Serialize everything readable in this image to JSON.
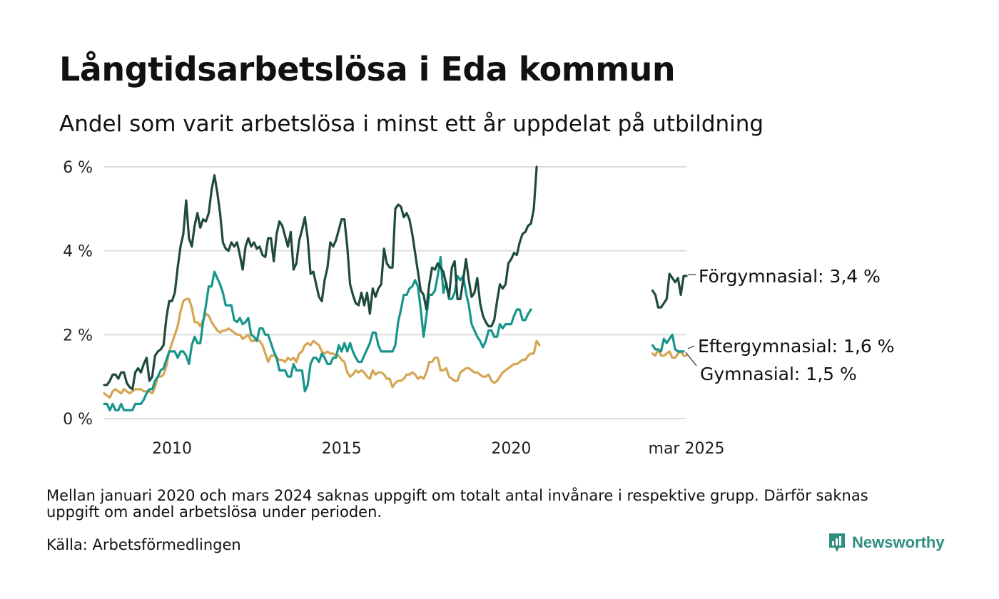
{
  "title": "Långtidsarbetslösa i Eda kommun",
  "subtitle": "Andel som varit arbetslösa i minst ett år uppdelat på utbildning",
  "note": "Mellan januari 2020 och mars 2024 saknas uppgift om totalt antal invånare i respektive grupp. Därför saknas uppgift om andel arbetslösa under perioden.",
  "source": "Källa: Arbetsförmedlingen",
  "brand": {
    "name": "Newsworthy",
    "icon": "newsworthy-logo-icon"
  },
  "colors": {
    "forgymnasial": "#1f4a3f",
    "eftergymnasial": "#16968a",
    "gymnasial": "#d4a552",
    "grid": "#dddddd"
  },
  "chart_data": {
    "type": "line",
    "title": "Långtidsarbetslösa i Eda kommun",
    "subtitle": "Andel som varit arbetslösa i minst ett år uppdelat på utbildning",
    "x_type": "date",
    "x_ticks": [
      "2010",
      "2015",
      "2020",
      "mar 2025"
    ],
    "y_ticks": [
      "0 %",
      "2 %",
      "4 %",
      "6 %"
    ],
    "y_tick_values": [
      0,
      2,
      4,
      6
    ],
    "ylim": [
      0,
      6
    ],
    "xlim": [
      "2008-01",
      "2025-03"
    ],
    "grid": "horizontal",
    "legend": "direct labels at line ends",
    "series": [
      {
        "name": "Förgymnasial",
        "end_label": "Förgymnasial: 3,4 %",
        "segments": [
          {
            "start": "2008-01",
            "values": [
              0.8,
              0.8,
              0.9,
              1.05,
              1.05,
              0.95,
              1.1,
              1.1,
              0.85,
              0.75,
              0.7,
              1.1,
              1.2,
              1.1,
              1.3,
              1.45,
              0.9,
              1.0,
              1.5,
              1.6,
              1.65,
              1.75,
              2.4,
              2.8,
              2.8,
              3.0,
              3.6,
              4.1,
              4.4,
              5.2,
              4.3,
              4.1,
              4.6,
              4.9,
              4.55,
              4.75,
              4.7,
              4.9,
              5.45,
              5.8,
              5.4,
              4.9,
              4.2,
              4.05,
              4.0,
              4.2,
              4.1,
              4.2,
              3.9,
              3.55,
              4.1,
              4.3,
              4.1,
              4.2,
              4.05,
              4.1,
              3.9,
              3.85,
              4.3,
              4.3,
              3.75,
              4.4,
              4.7,
              4.6,
              4.35,
              4.1,
              4.45,
              3.55,
              3.7,
              4.25,
              4.5,
              4.8,
              4.3,
              3.45,
              3.5,
              3.2,
              2.9,
              2.8,
              3.3,
              3.6,
              4.2,
              4.1,
              4.25,
              4.5,
              4.75,
              4.75,
              4.1,
              3.2,
              2.95,
              2.75,
              2.7,
              3.0,
              2.7,
              3.0,
              2.5,
              3.1,
              2.9,
              3.1,
              3.2,
              4.05,
              3.7,
              3.6,
              3.6,
              5.0,
              5.1,
              5.05,
              4.8,
              4.9,
              4.75,
              4.4,
              3.95,
              3.5,
              3.05,
              2.95,
              2.6,
              3.2,
              3.6,
              3.55,
              3.7,
              3.6,
              3.5,
              3.2,
              2.9,
              3.6,
              3.75,
              2.85,
              2.85,
              3.3,
              3.8,
              3.3,
              2.9,
              3.0,
              3.35,
              2.75,
              2.45,
              2.3,
              2.2,
              2.2,
              2.35,
              2.8,
              3.2,
              3.1,
              3.2,
              3.7,
              3.8,
              3.95,
              3.9,
              4.2,
              4.4,
              4.45,
              4.6,
              4.65,
              5.0,
              6.0
            ]
          },
          {
            "start": "2024-03",
            "values": [
              3.05,
              2.95,
              2.65,
              2.65,
              2.75,
              2.85,
              3.45,
              3.35,
              3.25,
              3.35,
              2.95,
              3.4,
              3.4
            ]
          }
        ]
      },
      {
        "name": "Eftergymnasial",
        "end_label": "Eftergymnasial: 1,6 %",
        "segments": [
          {
            "start": "2008-01",
            "values": [
              0.35,
              0.35,
              0.2,
              0.35,
              0.2,
              0.2,
              0.35,
              0.2,
              0.2,
              0.2,
              0.2,
              0.35,
              0.35,
              0.35,
              0.45,
              0.6,
              0.7,
              0.7,
              0.9,
              1.0,
              1.15,
              1.2,
              1.4,
              1.6,
              1.6,
              1.6,
              1.45,
              1.6,
              1.6,
              1.5,
              1.3,
              1.75,
              1.95,
              1.8,
              1.8,
              2.3,
              2.7,
              3.15,
              3.15,
              3.5,
              3.35,
              3.2,
              3.0,
              2.7,
              2.7,
              2.7,
              2.35,
              2.3,
              2.4,
              2.25,
              2.3,
              2.4,
              2.0,
              1.95,
              1.85,
              2.15,
              2.15,
              2.0,
              2.0,
              1.8,
              1.6,
              1.45,
              1.15,
              1.15,
              1.15,
              1.0,
              1.0,
              1.3,
              1.15,
              1.15,
              1.15,
              0.65,
              0.8,
              1.3,
              1.45,
              1.45,
              1.35,
              1.55,
              1.45,
              1.3,
              1.3,
              1.45,
              1.45,
              1.75,
              1.6,
              1.8,
              1.6,
              1.8,
              1.6,
              1.45,
              1.35,
              1.35,
              1.5,
              1.65,
              1.8,
              2.05,
              2.05,
              1.75,
              1.6,
              1.6,
              1.6,
              1.6,
              1.6,
              1.75,
              2.3,
              2.6,
              2.95,
              2.95,
              3.1,
              3.15,
              3.3,
              3.15,
              2.6,
              1.95,
              2.45,
              2.95,
              2.95,
              3.05,
              3.4,
              3.85,
              3.0,
              3.25,
              2.85,
              2.85,
              3.0,
              3.4,
              3.3,
              3.4,
              3.0,
              2.7,
              2.25,
              2.1,
              1.95,
              1.85,
              1.7,
              1.85,
              2.1,
              2.1,
              1.95,
              1.95,
              2.25,
              2.15,
              2.25,
              2.25,
              2.25,
              2.45,
              2.6,
              2.6,
              2.35,
              2.35,
              2.5,
              2.6
            ]
          },
          {
            "start": "2024-03",
            "values": [
              1.75,
              1.65,
              1.65,
              1.6,
              1.9,
              1.8,
              1.9,
              2.0,
              1.65,
              1.6,
              1.6,
              1.6
            ]
          }
        ]
      },
      {
        "name": "Gymnasial",
        "end_label": "Gymnasial: 1,5 %",
        "segments": [
          {
            "start": "2008-01",
            "values": [
              0.6,
              0.55,
              0.5,
              0.65,
              0.7,
              0.65,
              0.6,
              0.7,
              0.65,
              0.6,
              0.65,
              0.7,
              0.7,
              0.7,
              0.65,
              0.65,
              0.65,
              0.6,
              0.75,
              1.0,
              1.0,
              1.05,
              1.25,
              1.6,
              1.8,
              2.0,
              2.2,
              2.55,
              2.8,
              2.85,
              2.85,
              2.65,
              2.3,
              2.3,
              2.2,
              2.35,
              2.5,
              2.45,
              2.3,
              2.2,
              2.1,
              2.05,
              2.1,
              2.1,
              2.15,
              2.1,
              2.05,
              2.0,
              2.0,
              1.9,
              1.95,
              2.0,
              1.85,
              1.85,
              1.9,
              1.85,
              1.75,
              1.55,
              1.35,
              1.5,
              1.5,
              1.45,
              1.4,
              1.4,
              1.35,
              1.45,
              1.4,
              1.45,
              1.35,
              1.55,
              1.6,
              1.75,
              1.8,
              1.75,
              1.85,
              1.8,
              1.75,
              1.6,
              1.55,
              1.6,
              1.55,
              1.55,
              1.5,
              1.5,
              1.4,
              1.35,
              1.1,
              1.0,
              1.05,
              1.15,
              1.1,
              1.15,
              1.1,
              1.0,
              0.95,
              1.15,
              1.05,
              1.1,
              1.1,
              1.05,
              0.95,
              0.95,
              0.75,
              0.85,
              0.9,
              0.9,
              0.95,
              1.05,
              1.05,
              1.1,
              1.05,
              0.95,
              1.0,
              0.95,
              1.1,
              1.35,
              1.35,
              1.45,
              1.45,
              1.15,
              1.15,
              1.2,
              1.0,
              0.95,
              0.9,
              0.9,
              1.1,
              1.15,
              1.2,
              1.2,
              1.15,
              1.1,
              1.1,
              1.05,
              1.0,
              1.0,
              1.05,
              0.9,
              0.85,
              0.9,
              1.0,
              1.1,
              1.15,
              1.2,
              1.25,
              1.3,
              1.3,
              1.35,
              1.4,
              1.4,
              1.5,
              1.55,
              1.55,
              1.85,
              1.75
            ]
          },
          {
            "start": "2024-03",
            "values": [
              1.55,
              1.5,
              1.65,
              1.5,
              1.5,
              1.55,
              1.6,
              1.45,
              1.45,
              1.55,
              1.6,
              1.5,
              1.5
            ]
          }
        ]
      }
    ]
  }
}
